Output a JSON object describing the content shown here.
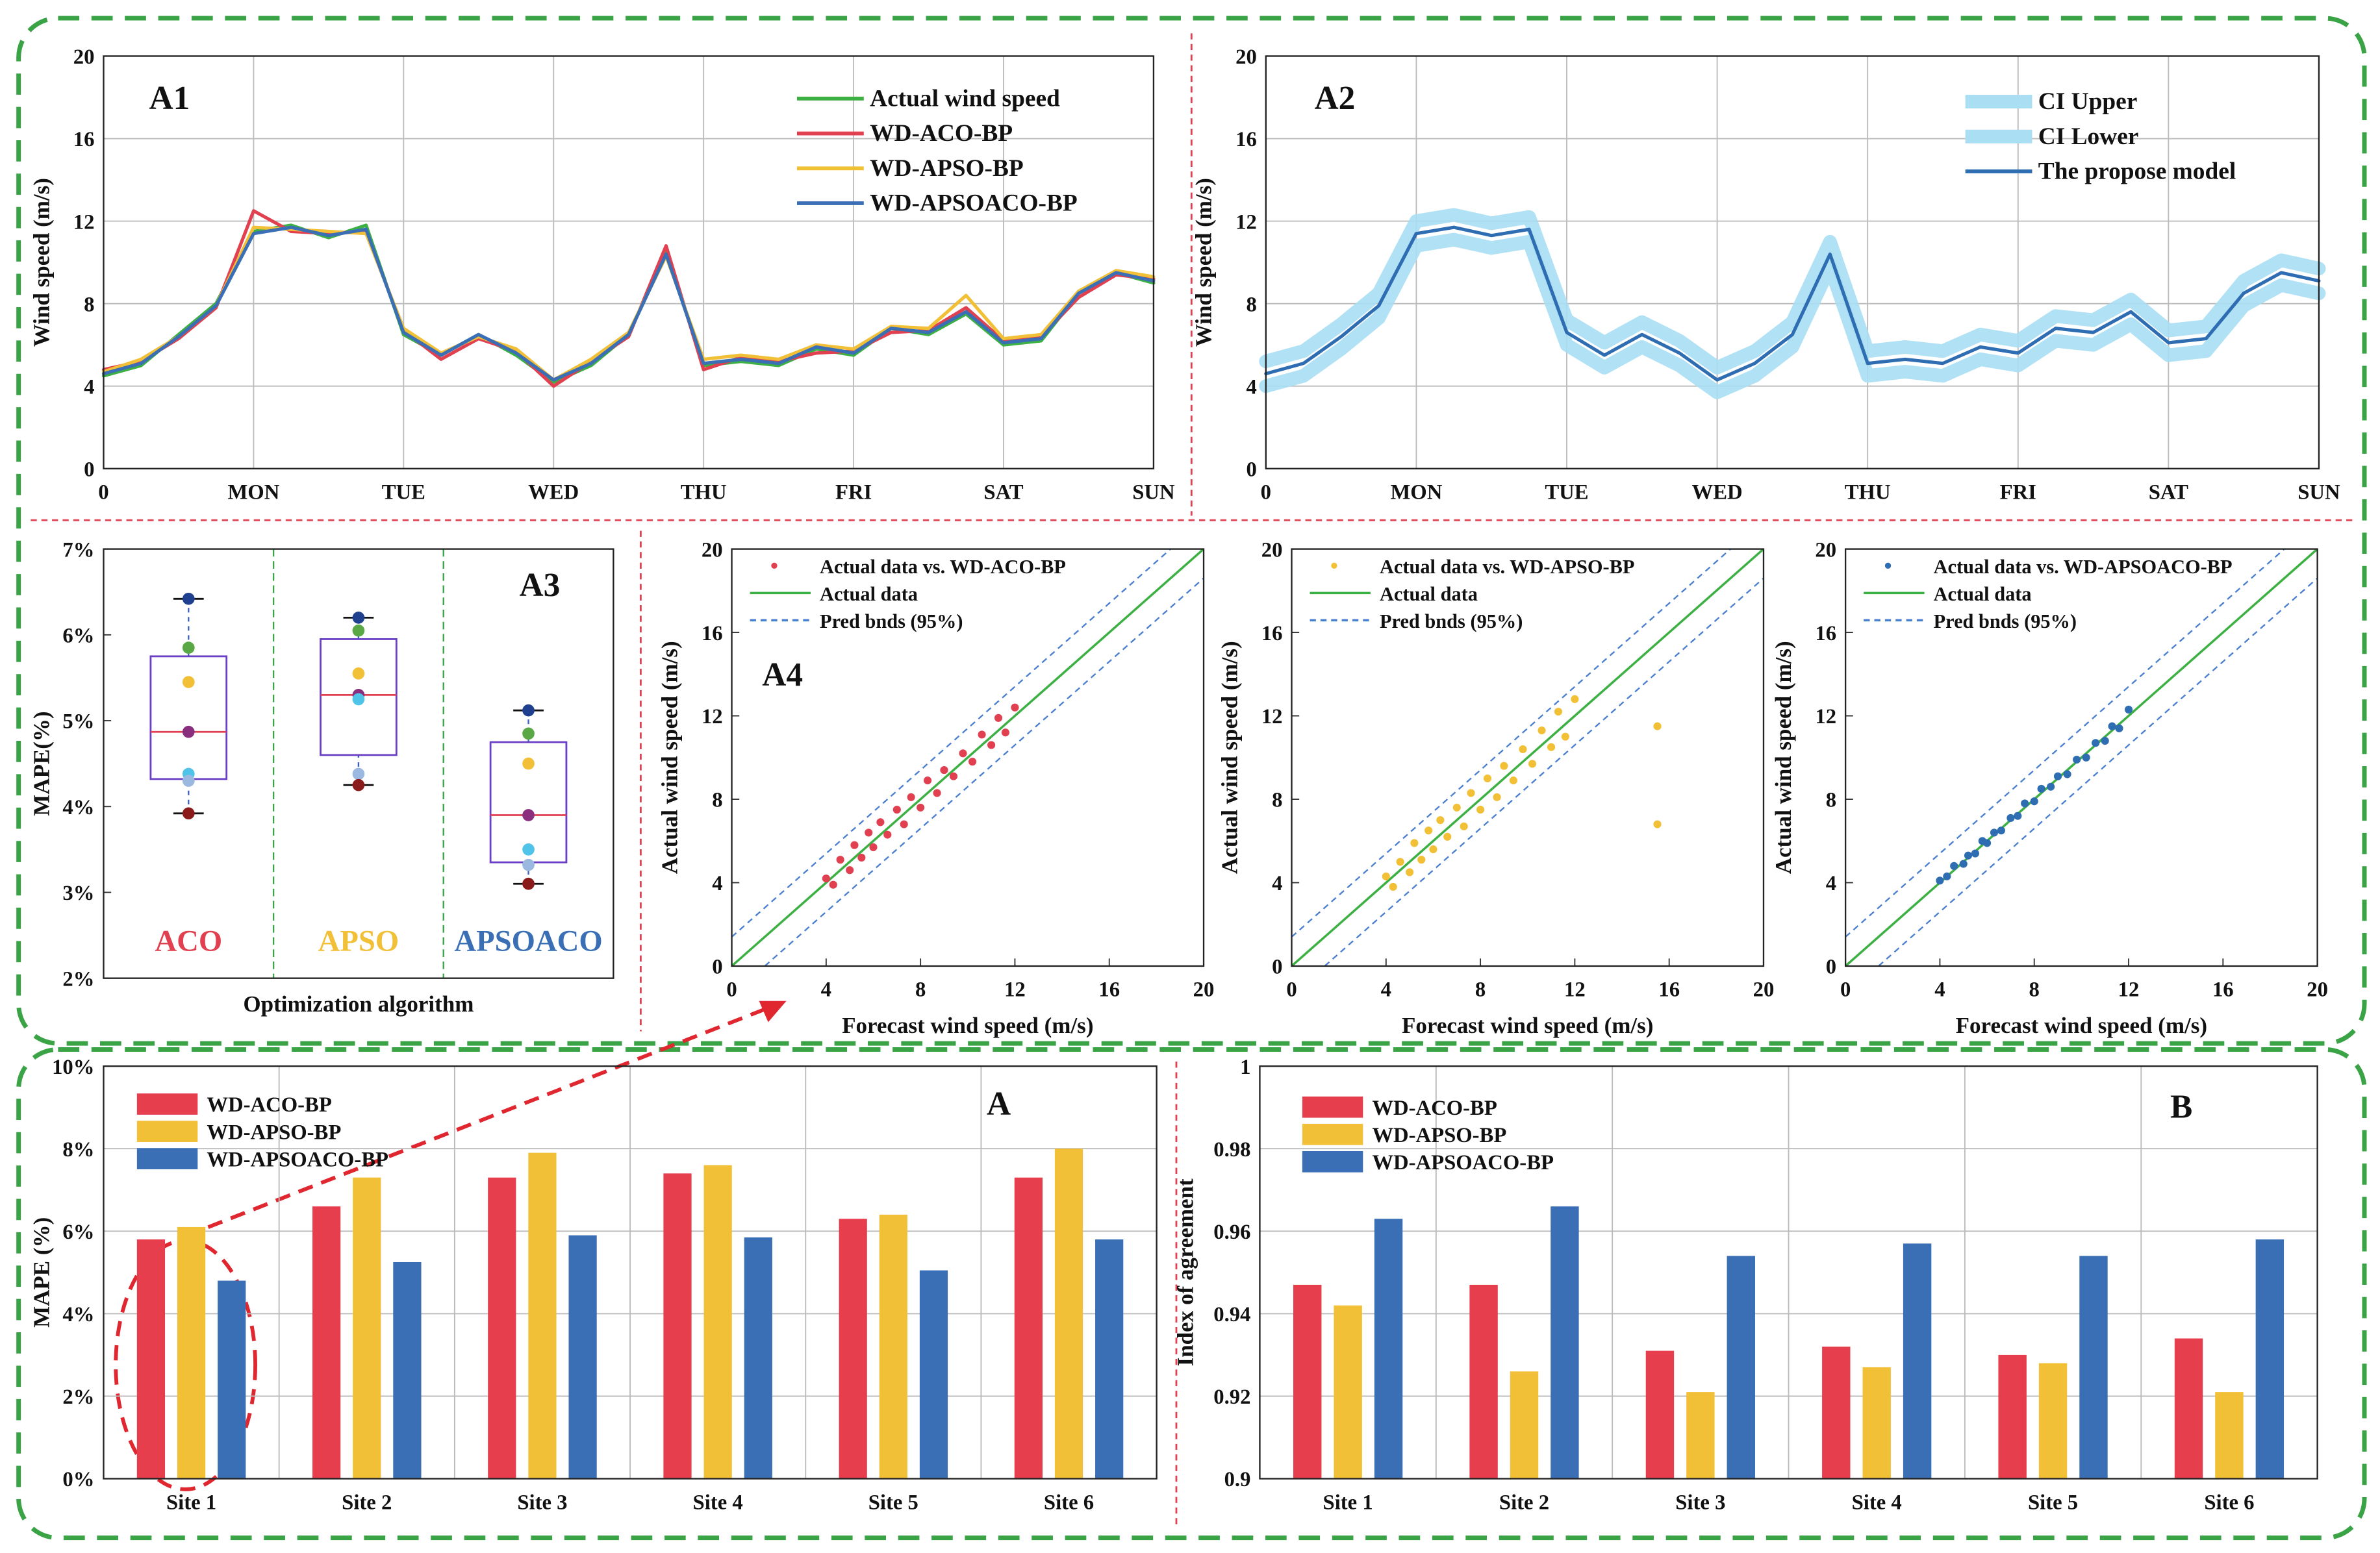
{
  "chart_data": [
    {
      "type": "line",
      "title": "A1",
      "ylabel": "Wind speed (m/s)",
      "grid": true,
      "x": [
        0,
        0.25,
        0.5,
        0.75,
        1,
        1.25,
        1.5,
        1.75,
        2,
        2.25,
        2.5,
        2.75,
        3,
        3.25,
        3.5,
        3.75,
        4,
        4.25,
        4.5,
        4.75,
        5,
        5.25,
        5.5,
        5.75,
        6,
        6.25,
        6.5,
        6.75,
        7
      ],
      "xlim": [
        0,
        7
      ],
      "xticks": [
        0,
        {
          "value": 1,
          "label": "MON"
        },
        {
          "value": 2,
          "label": "TUE"
        },
        {
          "value": 3,
          "label": "WED"
        },
        {
          "value": 4,
          "label": "THU"
        },
        {
          "value": 5,
          "label": "FRI"
        },
        {
          "value": 6,
          "label": "SAT"
        },
        {
          "value": 7,
          "label": "SUN"
        }
      ],
      "ylim": [
        0,
        20
      ],
      "yticks": [
        0,
        4,
        8,
        12,
        16,
        20
      ],
      "series": [
        {
          "name": "Actual wind speed",
          "color": "#3cb043",
          "values": [
            4.5,
            5,
            6.5,
            8,
            11.5,
            11.8,
            11.2,
            11.8,
            6.5,
            5.5,
            6.5,
            5.5,
            4.2,
            5,
            6.5,
            10.5,
            5,
            5.2,
            5,
            5.8,
            5.5,
            6.8,
            6.5,
            7.5,
            6,
            6.2,
            8.5,
            9.5,
            9
          ]
        },
        {
          "name": "WD-ACO-BP",
          "color": "#e0404f",
          "values": [
            4.8,
            5.2,
            6.3,
            7.8,
            12.5,
            11.5,
            11.4,
            11.5,
            6.7,
            5.3,
            6.3,
            5.7,
            4,
            5.2,
            6.4,
            10.8,
            4.8,
            5.4,
            5.2,
            5.6,
            5.7,
            6.6,
            6.7,
            7.8,
            6.2,
            6.4,
            8.3,
            9.4,
            9.2
          ]
        },
        {
          "name": "WD-APSO-BP",
          "color": "#f2c037",
          "values": [
            4.7,
            5.3,
            6.4,
            7.9,
            11.7,
            11.6,
            11.5,
            11.4,
            6.8,
            5.6,
            6.4,
            5.8,
            4.3,
            5.3,
            6.6,
            10.3,
            5.3,
            5.5,
            5.3,
            6,
            5.8,
            6.9,
            6.8,
            8.4,
            6.3,
            6.5,
            8.6,
            9.6,
            9.3
          ]
        },
        {
          "name": "WD-APSOACO-BP",
          "color": "#3a6fb5",
          "values": [
            4.6,
            5.1,
            6.4,
            7.9,
            11.4,
            11.7,
            11.3,
            11.6,
            6.6,
            5.5,
            6.5,
            5.6,
            4.3,
            5.1,
            6.5,
            10.4,
            5.1,
            5.3,
            5.1,
            5.9,
            5.6,
            6.8,
            6.6,
            7.6,
            6.1,
            6.3,
            8.5,
            9.5,
            9.1
          ]
        }
      ]
    },
    {
      "type": "line",
      "title": "A2",
      "ylabel": "Wind speed (m/s)",
      "grid": true,
      "x": [
        0,
        0.25,
        0.5,
        0.75,
        1,
        1.25,
        1.5,
        1.75,
        2,
        2.25,
        2.5,
        2.75,
        3,
        3.25,
        3.5,
        3.75,
        4,
        4.25,
        4.5,
        4.75,
        5,
        5.25,
        5.5,
        5.75,
        6,
        6.25,
        6.5,
        6.75,
        7
      ],
      "xlim": [
        0,
        7
      ],
      "xticks": [
        0,
        {
          "value": 1,
          "label": "MON"
        },
        {
          "value": 2,
          "label": "TUE"
        },
        {
          "value": 3,
          "label": "WED"
        },
        {
          "value": 4,
          "label": "THU"
        },
        {
          "value": 5,
          "label": "FRI"
        },
        {
          "value": 6,
          "label": "SAT"
        },
        {
          "value": 7,
          "label": "SUN"
        }
      ],
      "ylim": [
        0,
        20
      ],
      "yticks": [
        0,
        4,
        8,
        12,
        16,
        20
      ],
      "series": [
        {
          "name": "CI Upper",
          "color": "#a9def3",
          "values": [
            5.2,
            5.7,
            7,
            8.5,
            12,
            12.3,
            11.9,
            12.2,
            7.2,
            6.1,
            7.1,
            6.2,
            4.9,
            5.7,
            7.1,
            11,
            5.7,
            5.9,
            5.7,
            6.5,
            6.2,
            7.4,
            7.2,
            8.2,
            6.7,
            6.9,
            9.1,
            10.1,
            9.7
          ]
        },
        {
          "name": "CI Lower",
          "color": "#a9def3",
          "values": [
            4,
            4.5,
            5.8,
            7.3,
            10.8,
            11.1,
            10.7,
            11,
            6,
            4.9,
            5.9,
            5,
            3.7,
            4.5,
            5.9,
            9.8,
            4.5,
            4.7,
            4.5,
            5.3,
            5,
            6.2,
            6,
            7,
            5.5,
            5.7,
            7.9,
            8.9,
            8.5
          ]
        },
        {
          "name": "The propose model",
          "color": "#2f6db3",
          "values": [
            4.6,
            5.1,
            6.4,
            7.9,
            11.4,
            11.7,
            11.3,
            11.6,
            6.6,
            5.5,
            6.5,
            5.6,
            4.3,
            5.1,
            6.5,
            10.4,
            5.1,
            5.3,
            5.1,
            5.9,
            5.6,
            6.8,
            6.6,
            7.6,
            6.1,
            6.3,
            8.5,
            9.5,
            9.1
          ]
        }
      ]
    },
    {
      "type": "box",
      "title": "A3",
      "xlabel": "Optimization algorithm",
      "ylabel": "MAPE(%)",
      "grid": false,
      "ylim": [
        2,
        7
      ],
      "yticks": [
        {
          "value": 2,
          "label": "2%"
        },
        {
          "value": 3,
          "label": "3%"
        },
        {
          "value": 4,
          "label": "4%"
        },
        {
          "value": 5,
          "label": "5%"
        },
        {
          "value": 6,
          "label": "6%"
        },
        {
          "value": 7,
          "label": "7%"
        }
      ],
      "categories": [
        "ACO",
        "APSO",
        "APSOACO"
      ],
      "category_colors": [
        "#e0404f",
        "#f2c037",
        "#3a6fb5"
      ],
      "point_colors": [
        "#1f3f8f",
        "#5aa845",
        "#f2c037",
        "#8a2f7d",
        "#4fc3e8",
        "#9bb8e0",
        "#8b1a1a"
      ],
      "boxes": [
        {
          "min": 3.92,
          "q1": 4.32,
          "median": 4.87,
          "q3": 5.75,
          "max": 6.42,
          "points": [
            6.42,
            5.85,
            5.45,
            4.87,
            4.38,
            4.3,
            3.92
          ]
        },
        {
          "min": 4.25,
          "q1": 4.6,
          "median": 5.3,
          "q3": 5.95,
          "max": 6.2,
          "points": [
            6.2,
            6.05,
            5.55,
            5.3,
            5.25,
            4.38,
            4.25
          ]
        },
        {
          "min": 3.1,
          "q1": 3.35,
          "median": 3.9,
          "q3": 4.75,
          "max": 5.12,
          "points": [
            5.12,
            4.85,
            4.5,
            3.9,
            3.5,
            3.32,
            3.1
          ]
        }
      ]
    },
    {
      "type": "scatter",
      "title": "A4",
      "xlabel": "Forecast wind speed (m/s)",
      "ylabel": "Actual wind speed (m/s)",
      "grid": false,
      "xlim": [
        0,
        20
      ],
      "xticks": [
        0,
        4,
        8,
        12,
        16,
        20
      ],
      "ylim": [
        0,
        20
      ],
      "yticks": [
        0,
        4,
        8,
        12,
        16,
        20
      ],
      "series": [
        {
          "name": "Actual data vs. WD-ACO-BP",
          "color": "#e0404f",
          "x": [
            4,
            4.3,
            4.6,
            5,
            5.2,
            5.5,
            5.8,
            6,
            6.3,
            6.6,
            7,
            7.3,
            7.6,
            8,
            8.3,
            8.7,
            9,
            9.4,
            9.8,
            10.2,
            10.6,
            11,
            11.3,
            11.6,
            12
          ],
          "y": [
            4.2,
            3.9,
            5.1,
            4.6,
            5.8,
            5.2,
            6.4,
            5.7,
            6.9,
            6.3,
            7.5,
            6.8,
            8.1,
            7.6,
            8.9,
            8.3,
            9.4,
            9.1,
            10.2,
            9.8,
            11.1,
            10.6,
            11.9,
            11.2,
            12.4
          ]
        }
      ],
      "reference_lines": [
        {
          "name": "Actual data",
          "color": "#3cb043"
        },
        {
          "name": "Pred bnds (95%)",
          "color": "#4a7fd0",
          "offset": 1.4
        }
      ]
    },
    {
      "type": "scatter",
      "xlabel": "Forecast wind speed (m/s)",
      "ylabel": "Actual wind speed (m/s)",
      "grid": false,
      "xlim": [
        0,
        20
      ],
      "xticks": [
        0,
        4,
        8,
        12,
        16,
        20
      ],
      "ylim": [
        0,
        20
      ],
      "yticks": [
        0,
        4,
        8,
        12,
        16,
        20
      ],
      "series": [
        {
          "name": "Actual data vs. WD-APSO-BP",
          "color": "#f2c037",
          "x": [
            4,
            4.3,
            4.6,
            5,
            5.2,
            5.5,
            5.8,
            6,
            6.3,
            6.6,
            7,
            7.3,
            7.6,
            8,
            8.3,
            8.7,
            9,
            9.4,
            9.8,
            10.2,
            10.6,
            11,
            11.3,
            11.6,
            12,
            15.5,
            15.5
          ],
          "y": [
            4.3,
            3.8,
            5,
            4.5,
            5.9,
            5.1,
            6.5,
            5.6,
            7,
            6.2,
            7.6,
            6.7,
            8.3,
            7.5,
            9,
            8.1,
            9.6,
            8.9,
            10.4,
            9.7,
            11.3,
            10.5,
            12.2,
            11,
            12.8,
            11.5,
            6.8
          ]
        }
      ],
      "reference_lines": [
        {
          "name": "Actual data",
          "color": "#3cb043"
        },
        {
          "name": "Pred bnds (95%)",
          "color": "#4a7fd0",
          "offset": 1.4
        }
      ]
    },
    {
      "type": "scatter",
      "xlabel": "Forecast wind speed (m/s)",
      "ylabel": "Actual wind speed (m/s)",
      "grid": false,
      "xlim": [
        0,
        20
      ],
      "xticks": [
        0,
        4,
        8,
        12,
        16,
        20
      ],
      "ylim": [
        0,
        20
      ],
      "yticks": [
        0,
        4,
        8,
        12,
        16,
        20
      ],
      "series": [
        {
          "name": "Actual data vs. WD-APSOACO-BP",
          "color": "#2f6db3",
          "x": [
            4,
            4.3,
            4.6,
            5,
            5.2,
            5.5,
            5.8,
            6,
            6.3,
            6.6,
            7,
            7.3,
            7.6,
            8,
            8.3,
            8.7,
            9,
            9.4,
            9.8,
            10.2,
            10.6,
            11,
            11.3,
            11.6,
            12
          ],
          "y": [
            4.1,
            4.3,
            4.8,
            4.9,
            5.3,
            5.4,
            6,
            5.9,
            6.4,
            6.5,
            7.1,
            7.2,
            7.8,
            7.9,
            8.5,
            8.6,
            9.1,
            9.2,
            9.9,
            10,
            10.7,
            10.8,
            11.5,
            11.4,
            12.3
          ]
        }
      ],
      "reference_lines": [
        {
          "name": "Actual data",
          "color": "#3cb043"
        },
        {
          "name": "Pred bnds (95%)",
          "color": "#4a7fd0",
          "offset": 1.4
        }
      ]
    },
    {
      "type": "bar",
      "title": "A",
      "ylabel": "MAPE (%)",
      "grid": true,
      "categories": [
        "Site 1",
        "Site 2",
        "Site 3",
        "Site 4",
        "Site 5",
        "Site 6"
      ],
      "ylim": [
        0,
        10
      ],
      "yticks": [
        {
          "value": 0,
          "label": "0%"
        },
        {
          "value": 2,
          "label": "2%"
        },
        {
          "value": 4,
          "label": "4%"
        },
        {
          "value": 6,
          "label": "6%"
        },
        {
          "value": 8,
          "label": "8%"
        },
        {
          "value": 10,
          "label": "10%"
        }
      ],
      "series": [
        {
          "name": "WD-ACO-BP",
          "color": "#e63e4c",
          "values": [
            5.8,
            6.6,
            7.3,
            7.4,
            6.3,
            7.3
          ]
        },
        {
          "name": "WD-APSO-BP",
          "color": "#f2c037",
          "values": [
            6.1,
            7.3,
            7.9,
            7.6,
            6.4,
            8.0
          ]
        },
        {
          "name": "WD-APSOACO-BP",
          "color": "#3a6fb5",
          "values": [
            4.8,
            5.25,
            5.9,
            5.85,
            5.05,
            5.8
          ]
        }
      ]
    },
    {
      "type": "bar",
      "title": "B",
      "ylabel": "Index of agreement",
      "grid": true,
      "categories": [
        "Site 1",
        "Site 2",
        "Site 3",
        "Site 4",
        "Site 5",
        "Site 6"
      ],
      "ylim": [
        0.9,
        1
      ],
      "yticks": [
        0.9,
        0.92,
        0.94,
        0.96,
        0.98,
        1
      ],
      "series": [
        {
          "name": "WD-ACO-BP",
          "color": "#e63e4c",
          "values": [
            0.947,
            0.947,
            0.931,
            0.932,
            0.93,
            0.934
          ]
        },
        {
          "name": "WD-APSO-BP",
          "color": "#f2c037",
          "values": [
            0.942,
            0.926,
            0.921,
            0.927,
            0.928,
            0.921
          ]
        },
        {
          "name": "WD-APSOACO-BP",
          "color": "#3a6fb5",
          "values": [
            0.963,
            0.966,
            0.954,
            0.957,
            0.954,
            0.958
          ]
        }
      ]
    }
  ]
}
